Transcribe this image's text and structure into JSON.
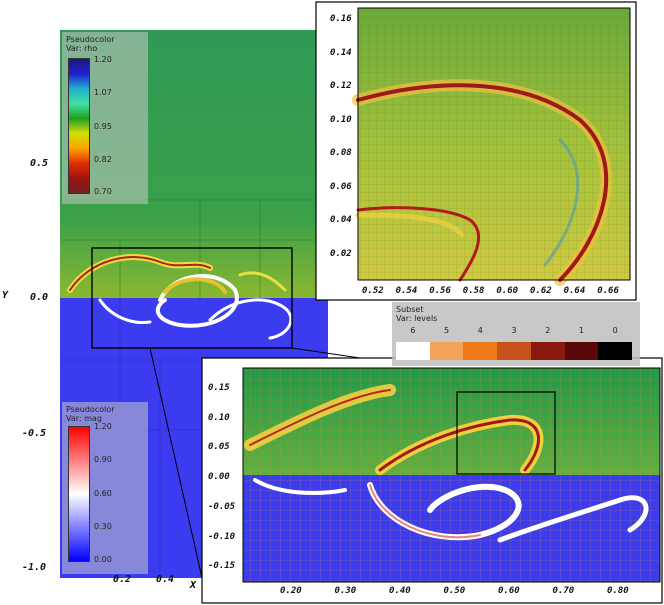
{
  "legends": {
    "rho": {
      "title": "Pseudocolor",
      "var": "Var: rho",
      "ticks": [
        "1.20",
        "1.07",
        "0.95",
        "0.82",
        "0.70"
      ],
      "colors": [
        "#1a1a7a",
        "#2020d0",
        "#20b0d0",
        "#40e0a0",
        "#20a020",
        "#d0e000",
        "#ffa000",
        "#e03000",
        "#a01010",
        "#702020"
      ]
    },
    "mag": {
      "title": "Pseudocolor",
      "var": "Var: mag",
      "ticks": [
        "1.20",
        "0.90",
        "0.60",
        "0.30",
        "0.00"
      ],
      "colors": [
        "#ff0000",
        "#ff8080",
        "#ffffff",
        "#8080ff",
        "#0000ff"
      ]
    },
    "subset": {
      "title": "Subset",
      "var": "Var: levels",
      "labels": [
        "6",
        "5",
        "4",
        "3",
        "2",
        "1",
        "0"
      ],
      "colors": [
        "#ffffff",
        "#f5a35a",
        "#ef7a1a",
        "#c8501a",
        "#8a1a10",
        "#5a0808",
        "#000000"
      ]
    }
  },
  "main_plot": {
    "x_ticks": [
      "0.2",
      "0.4"
    ],
    "y_ticks": [
      "0.5",
      "0.0",
      "-0.5",
      "-1.0"
    ],
    "x_label": "X",
    "y_label": "Y"
  },
  "zoom_top": {
    "x_ticks": [
      "0.52",
      "0.54",
      "0.56",
      "0.58",
      "0.60",
      "0.62",
      "0.64",
      "0.66"
    ],
    "y_ticks": [
      "0.16",
      "0.14",
      "0.12",
      "0.10",
      "0.08",
      "0.06",
      "0.04",
      "0.02"
    ]
  },
  "zoom_bottom": {
    "x_ticks": [
      "0.20",
      "0.30",
      "0.40",
      "0.50",
      "0.60",
      "0.70",
      "0.80"
    ],
    "y_ticks": [
      "0.15",
      "0.10",
      "0.05",
      "0.00",
      "-0.05",
      "-0.10",
      "-0.15"
    ]
  }
}
